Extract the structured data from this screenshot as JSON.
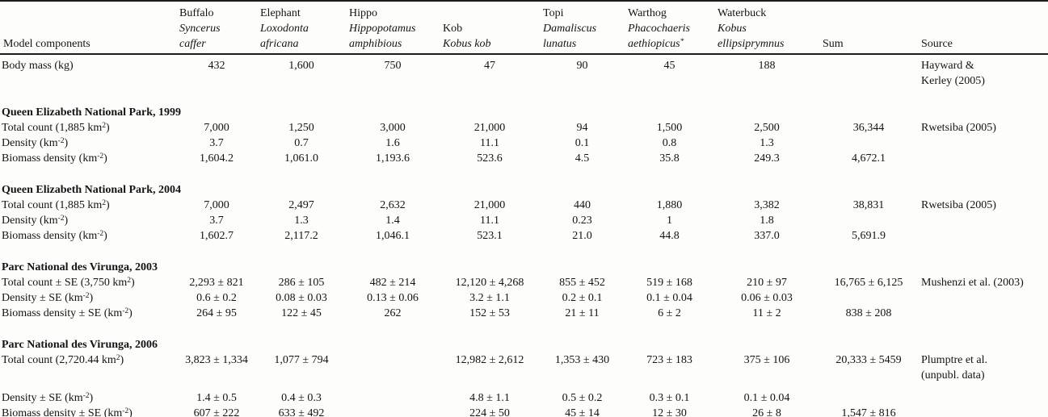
{
  "table": {
    "columns": {
      "model_components": "Model components",
      "animals": [
        {
          "id": "buffalo",
          "lines": [
            {
              "t": "Buffalo",
              "i": false
            },
            {
              "t": "Syncerus",
              "i": true
            },
            {
              "t": "caffer",
              "i": true
            }
          ]
        },
        {
          "id": "elephant",
          "lines": [
            {
              "t": "Elephant",
              "i": false
            },
            {
              "t": "Loxodonta",
              "i": true
            },
            {
              "t": "africana",
              "i": true
            }
          ]
        },
        {
          "id": "hippo",
          "lines": [
            {
              "t": "Hippo",
              "i": false
            },
            {
              "t": "Hippopotamus",
              "i": true
            },
            {
              "t": "amphibious",
              "i": true
            }
          ]
        },
        {
          "id": "kob",
          "lines": [
            {
              "t": "Kob",
              "i": false
            },
            {
              "t": "Kobus kob",
              "i": true
            }
          ]
        },
        {
          "id": "topi",
          "lines": [
            {
              "t": "Topi",
              "i": false
            },
            {
              "t": "Damaliscus",
              "i": true
            },
            {
              "t": "lunatus",
              "i": true
            }
          ]
        },
        {
          "id": "warthog",
          "lines": [
            {
              "t": "Warthog",
              "i": false
            },
            {
              "t": "Phacochaeris",
              "i": true
            },
            {
              "t": "aethiopicus",
              "i": true,
              "m": "*"
            }
          ]
        },
        {
          "id": "waterbuck",
          "lines": [
            {
              "t": "Waterbuck",
              "i": false
            },
            {
              "t": "Kobus",
              "i": true
            },
            {
              "t": "ellipsiprymnus",
              "i": true
            }
          ]
        }
      ],
      "sum": "Sum",
      "source": "Source"
    },
    "sections": [
      {
        "title": "",
        "rows": [
          {
            "label": {
              "pre": "Body mass (kg)",
              "sup": "",
              "post": ""
            },
            "values": [
              "432",
              "1,600",
              "750",
              "47",
              "90",
              "45",
              "188"
            ],
            "sum": "",
            "source": [
              "Hayward &",
              "Kerley (2005)"
            ]
          }
        ]
      },
      {
        "title": "Queen Elizabeth National Park, 1999",
        "rows": [
          {
            "label": {
              "pre": "Total count (1,885 km",
              "sup": "2",
              "post": ")"
            },
            "values": [
              "7,000",
              "1,250",
              "3,000",
              "21,000",
              "94",
              "1,500",
              "2,500"
            ],
            "sum": "36,344",
            "source": [
              "Rwetsiba (2005)"
            ]
          },
          {
            "label": {
              "pre": "Density (km",
              "sup": "-2",
              "post": ")"
            },
            "values": [
              "3.7",
              "0.7",
              "1.6",
              "11.1",
              "0.1",
              "0.8",
              "1.3"
            ],
            "sum": "",
            "source": []
          },
          {
            "label": {
              "pre": "Biomass density (km",
              "sup": "-2",
              "post": ")"
            },
            "values": [
              "1,604.2",
              "1,061.0",
              "1,193.6",
              "523.6",
              "4.5",
              "35.8",
              "249.3"
            ],
            "sum": "4,672.1",
            "source": []
          }
        ]
      },
      {
        "title": "Queen Elizabeth National Park, 2004",
        "rows": [
          {
            "label": {
              "pre": "Total count (1,885 km",
              "sup": "2",
              "post": ")"
            },
            "values": [
              "7,000",
              "2,497",
              "2,632",
              "21,000",
              "440",
              "1,880",
              "3,382"
            ],
            "sum": "38,831",
            "source": [
              "Rwetsiba (2005)"
            ]
          },
          {
            "label": {
              "pre": "Density (km",
              "sup": "-2",
              "post": ")"
            },
            "values": [
              "3.7",
              "1.3",
              "1.4",
              "11.1",
              "0.23",
              "1",
              "1.8"
            ],
            "sum": "",
            "source": []
          },
          {
            "label": {
              "pre": "Biomass density (km",
              "sup": "-2",
              "post": ")"
            },
            "values": [
              "1,602.7",
              "2,117.2",
              "1,046.1",
              "523.1",
              "21.0",
              "44.8",
              "337.0"
            ],
            "sum": "5,691.9",
            "source": []
          }
        ]
      },
      {
        "title": "Parc National des Virunga, 2003",
        "rows": [
          {
            "label": {
              "pre": "Total count ± SE (3,750 km",
              "sup": "2",
              "post": ")"
            },
            "values": [
              "2,293 ± 821",
              "286 ± 105",
              "482 ± 214",
              "12,120 ± 4,268",
              "855 ± 452",
              "519 ± 168",
              "210 ± 97"
            ],
            "sum": "16,765 ± 6,125",
            "source": [
              "Mushenzi et al. (2003)"
            ]
          },
          {
            "label": {
              "pre": "Density ± SE (km",
              "sup": "-2",
              "post": ")"
            },
            "values": [
              "0.6 ± 0.2",
              "0.08 ± 0.03",
              "0.13 ± 0.06",
              "3.2 ± 1.1",
              "0.2 ± 0.1",
              "0.1 ± 0.04",
              "0.06 ± 0.03"
            ],
            "sum": "",
            "source": []
          },
          {
            "label": {
              "pre": "Biomass density ± SE (km",
              "sup": "-2",
              "post": ")"
            },
            "values": [
              "264 ± 95",
              "122 ± 45",
              "262",
              "152 ± 53",
              "21 ± 11",
              "6 ± 2",
              "11 ± 2"
            ],
            "sum": "838 ± 208",
            "source": []
          }
        ]
      },
      {
        "title": "Parc National des Virunga, 2006",
        "rows": [
          {
            "label": {
              "pre": "Total count (2,720.44 km",
              "sup": "2",
              "post": ")"
            },
            "values": [
              "3,823 ± 1,334",
              "1,077 ± 794",
              "",
              "12,982 ± 2,612",
              "1,353 ± 430",
              "723 ± 183",
              "375 ± 106"
            ],
            "sum": "20,333 ± 5459",
            "source": [
              "Plumptre et al.",
              "(unpubl. data)"
            ],
            "gap_after": true
          },
          {
            "label": {
              "pre": "Density ± SE (km",
              "sup": "-2",
              "post": ")"
            },
            "values": [
              "1.4 ± 0.5",
              "0.4 ± 0.3",
              "",
              "4.8 ± 1.1",
              "0.5 ± 0.2",
              "0.3 ± 0.1",
              "0.1 ± 0.04"
            ],
            "sum": "",
            "source": []
          },
          {
            "label": {
              "pre": "Biomass density ± SE (km",
              "sup": "-2",
              "post": ")"
            },
            "values": [
              "607 ± 222",
              "633 ± 492",
              "",
              "224 ± 50",
              "45 ± 14",
              "12 ± 30",
              "26 ± 8"
            ],
            "sum": "1,547 ± 816",
            "source": []
          }
        ]
      }
    ]
  }
}
